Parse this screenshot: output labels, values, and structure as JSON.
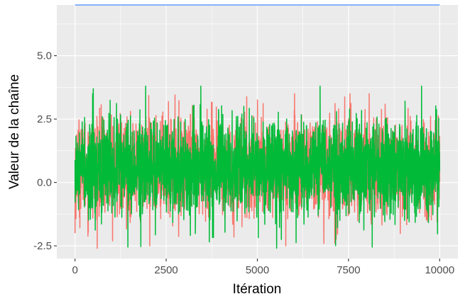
{
  "chart_data": {
    "type": "line",
    "title": "",
    "xlabel": "Itération",
    "ylabel": "Valeur de la chaîne",
    "xlim": [
      -500,
      10500
    ],
    "ylim": [
      -3.0,
      7.0
    ],
    "x_ticks": [
      0,
      2500,
      5000,
      7500,
      10000
    ],
    "x_tick_labels": [
      "0",
      "2500",
      "5000",
      "7500",
      "10000"
    ],
    "y_ticks": [
      -2.5,
      0.0,
      2.5,
      5.0
    ],
    "y_tick_labels": [
      "-2.5",
      "0.0",
      "2.5",
      "5.0"
    ],
    "grid": true,
    "legend": "none",
    "panel_background": "#ebebeb",
    "grid_color": "#ffffff",
    "series": [
      {
        "color": "#f8766d",
        "style": "trace",
        "n_points": 10000,
        "center": 0.6,
        "spread": 0.95,
        "range": [
          -2.6,
          3.5
        ],
        "notable_points": [
          [
            7540,
            3.5
          ],
          [
            0,
            -2.0
          ],
          [
            2050,
            -2.5
          ],
          [
            5780,
            -2.5
          ]
        ]
      },
      {
        "color": "#00ba38",
        "style": "trace",
        "n_points": 10000,
        "center": 0.6,
        "spread": 0.95,
        "range": [
          -2.6,
          3.8
        ],
        "notable_points": [
          [
            3450,
            3.8
          ],
          [
            6720,
            3.8
          ],
          [
            500,
            3.7
          ],
          [
            1450,
            -2.55
          ],
          [
            8150,
            -2.55
          ]
        ]
      },
      {
        "color": "#619cff",
        "style": "constant",
        "x": [
          0,
          10000
        ],
        "y": [
          7.0,
          7.0
        ]
      }
    ]
  }
}
